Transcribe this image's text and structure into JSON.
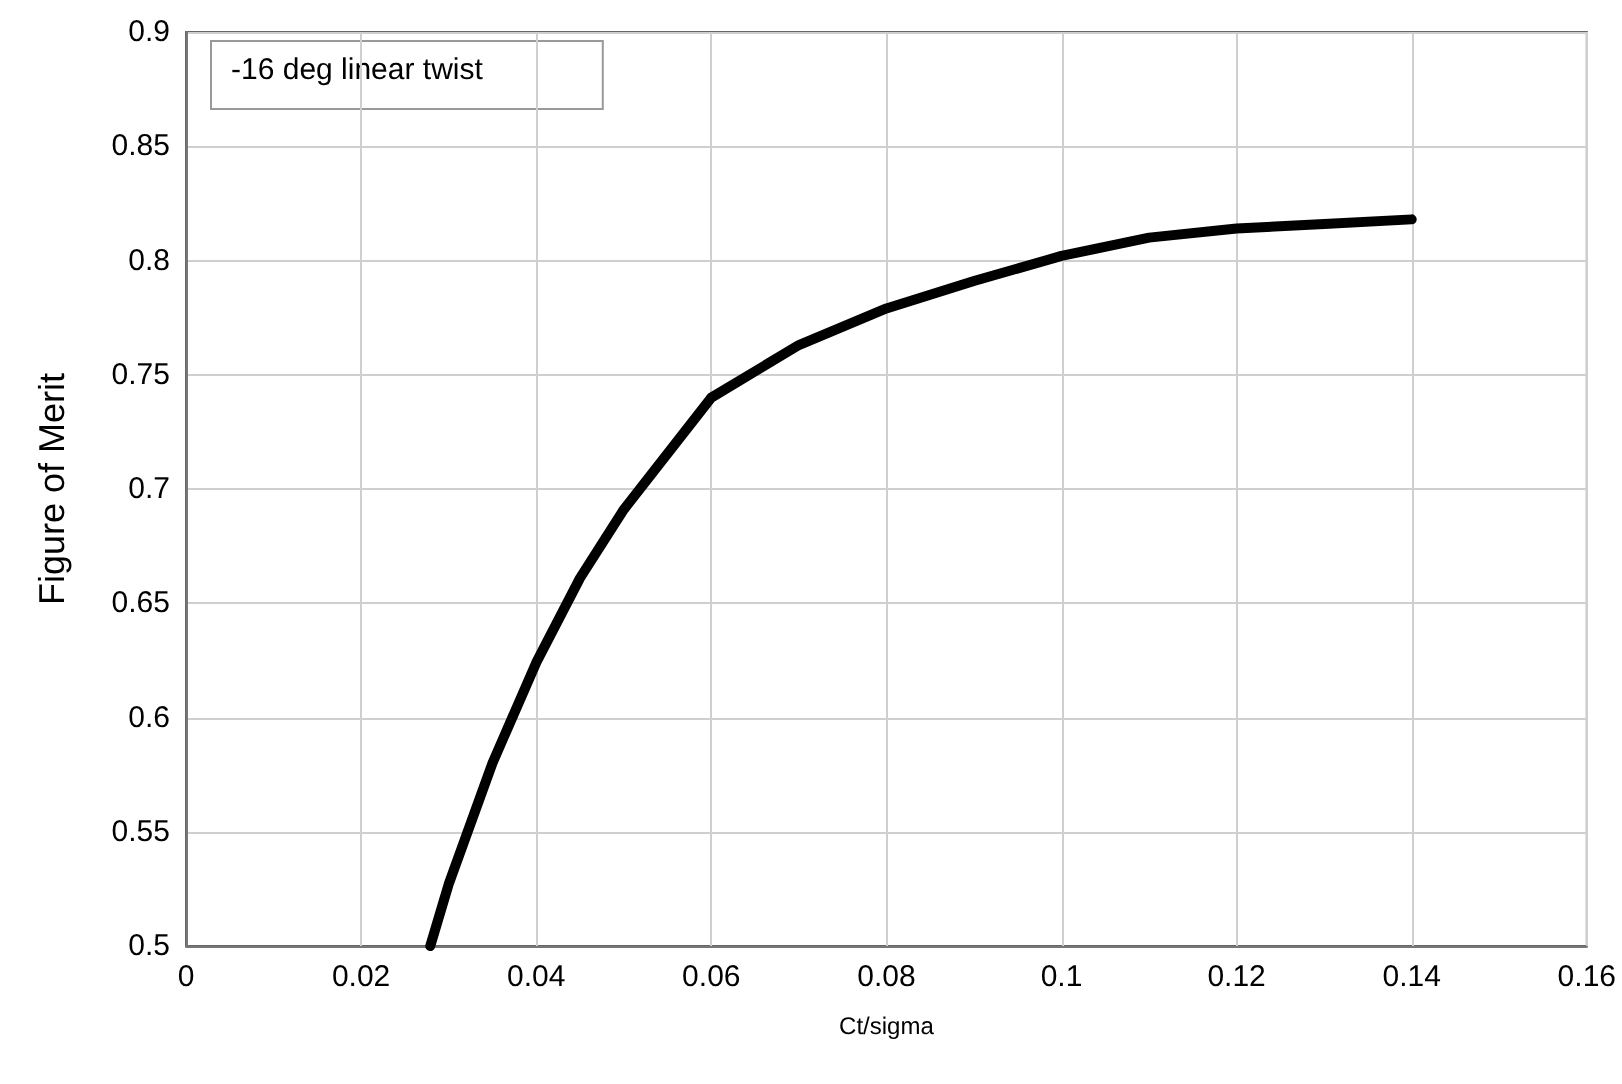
{
  "chart_data": {
    "type": "line",
    "xlabel": "Ct/sigma",
    "ylabel": "Figure of Merit",
    "annotations": [
      "-16 deg linear twist"
    ],
    "x": [
      0.0279,
      0.03,
      0.035,
      0.04,
      0.045,
      0.05,
      0.06,
      0.07,
      0.08,
      0.09,
      0.1,
      0.11,
      0.12,
      0.13,
      0.14
    ],
    "series": [
      {
        "color": "#000000",
        "values": [
          0.5,
          0.527,
          0.58,
          0.624,
          0.661,
          0.691,
          0.74,
          0.763,
          0.779,
          0.791,
          0.802,
          0.81,
          0.814,
          0.816,
          0.818
        ]
      }
    ],
    "xlim": [
      0,
      0.16
    ],
    "xticks": [
      0,
      0.02,
      0.04,
      0.06,
      0.08,
      0.1,
      0.12,
      0.14,
      0.16
    ],
    "ylim": [
      0.5,
      0.9
    ],
    "yticks": [
      0.5,
      0.55,
      0.6,
      0.65,
      0.7,
      0.75,
      0.8,
      0.85,
      0.9
    ],
    "grid": true,
    "marker": "none",
    "line_style": "solid"
  }
}
